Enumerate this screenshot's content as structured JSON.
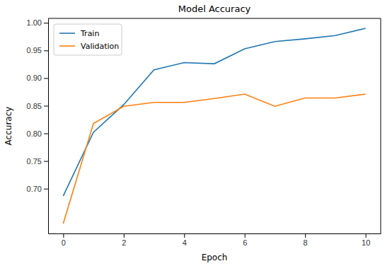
{
  "chart_data": {
    "type": "line",
    "title": "Model Accuracy",
    "xlabel": "Epoch",
    "ylabel": "Accuracy",
    "x": [
      0,
      1,
      2,
      3,
      4,
      5,
      6,
      7,
      8,
      9,
      10
    ],
    "series": [
      {
        "name": "Train",
        "color": "#1f77b4",
        "values": [
          0.687,
          0.802,
          0.852,
          0.915,
          0.928,
          0.926,
          0.953,
          0.966,
          0.971,
          0.977,
          0.99
        ]
      },
      {
        "name": "Validation",
        "color": "#ff7f0e",
        "values": [
          0.637,
          0.818,
          0.849,
          0.856,
          0.856,
          0.863,
          0.871,
          0.849,
          0.864,
          0.864,
          0.871
        ]
      }
    ],
    "xlim": [
      -0.5,
      10.5
    ],
    "xticks": [
      0,
      2,
      4,
      6,
      8,
      10
    ],
    "ylim": [
      0.619,
      1.008
    ],
    "yticks": [
      {
        "value": 0.7,
        "label": "0.70"
      },
      0.75,
      {
        "value": 0.8,
        "label": "0.80"
      },
      0.85,
      {
        "value": 0.9,
        "label": "0.90"
      },
      0.95,
      {
        "value": 1.0,
        "label": "1.00"
      }
    ],
    "grid": false,
    "legend": "upper left"
  }
}
